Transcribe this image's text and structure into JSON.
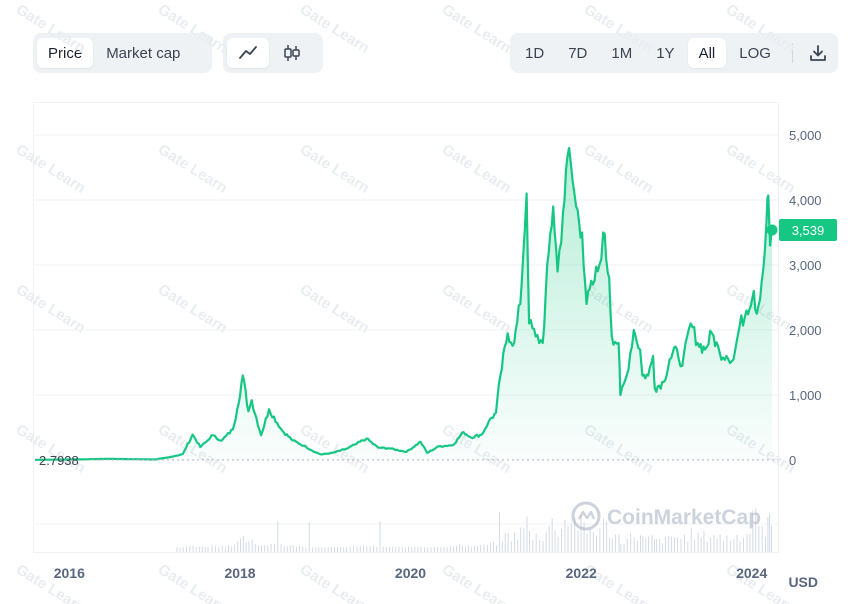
{
  "toolbar": {
    "mode_tabs": [
      {
        "label": "Price",
        "active": true
      },
      {
        "label": "Market cap",
        "active": false
      }
    ],
    "chart_type_icons": [
      "line-chart-icon",
      "candlestick-icon"
    ],
    "ranges": [
      {
        "label": "1D",
        "active": false
      },
      {
        "label": "7D",
        "active": false
      },
      {
        "label": "1M",
        "active": false
      },
      {
        "label": "1Y",
        "active": false
      },
      {
        "label": "All",
        "active": true
      }
    ],
    "log_label": "LOG",
    "download_icon": "download-icon"
  },
  "watermark": {
    "brand": "CoinMarketCap",
    "repeat_text": "Gate Learn"
  },
  "colors": {
    "line": "#16c784",
    "fill_top": "#16c784",
    "badge_bg": "#16c784",
    "axis_text": "#58667e",
    "grid": "#eff2f5",
    "volume": "#cfd6e4"
  },
  "currency_label": "USD",
  "chart_data": {
    "type": "area",
    "title": "",
    "xlabel": "",
    "ylabel": "",
    "x_ticks": [
      "2016",
      "2018",
      "2020",
      "2022",
      "2024"
    ],
    "y_ticks": [
      "5,000",
      "4,000",
      "3,000",
      "2,000",
      "1,000",
      "0"
    ],
    "ylim": [
      0,
      5000
    ],
    "start_price_label": "2.7938",
    "current_price_label": "3,539",
    "series": [
      {
        "values": [
          [
            "2015-08-07",
            2.79
          ],
          [
            "2016-03-01",
            10
          ],
          [
            "2016-06-15",
            18
          ],
          [
            "2017-01-01",
            8
          ],
          [
            "2017-03-01",
            40
          ],
          [
            "2017-05-01",
            90
          ],
          [
            "2017-06-12",
            390
          ],
          [
            "2017-07-15",
            200
          ],
          [
            "2017-08-15",
            300
          ],
          [
            "2017-09-01",
            380
          ],
          [
            "2017-10-15",
            300
          ],
          [
            "2017-12-01",
            470
          ],
          [
            "2017-12-20",
            780
          ],
          [
            "2018-01-13",
            1300
          ],
          [
            "2018-02-06",
            750
          ],
          [
            "2018-02-20",
            920
          ],
          [
            "2018-04-01",
            380
          ],
          [
            "2018-05-05",
            780
          ],
          [
            "2018-07-01",
            450
          ],
          [
            "2018-08-15",
            300
          ],
          [
            "2018-10-01",
            220
          ],
          [
            "2018-11-20",
            120
          ],
          [
            "2018-12-15",
            85
          ],
          [
            "2019-02-01",
            110
          ],
          [
            "2019-04-01",
            170
          ],
          [
            "2019-05-15",
            250
          ],
          [
            "2019-06-26",
            330
          ],
          [
            "2019-08-15",
            190
          ],
          [
            "2019-10-01",
            180
          ],
          [
            "2019-12-15",
            125
          ],
          [
            "2020-02-13",
            280
          ],
          [
            "2020-03-13",
            110
          ],
          [
            "2020-05-01",
            210
          ],
          [
            "2020-07-01",
            230
          ],
          [
            "2020-08-15",
            430
          ],
          [
            "2020-09-15",
            350
          ],
          [
            "2020-11-01",
            390
          ],
          [
            "2020-12-01",
            590
          ],
          [
            "2021-01-01",
            730
          ],
          [
            "2021-01-20",
            1300
          ],
          [
            "2021-02-20",
            1950
          ],
          [
            "2021-03-20",
            1800
          ],
          [
            "2021-04-15",
            2400
          ],
          [
            "2021-05-12",
            4100
          ],
          [
            "2021-05-23",
            2100
          ],
          [
            "2021-06-20",
            1900
          ],
          [
            "2021-07-20",
            1800
          ],
          [
            "2021-08-15",
            3200
          ],
          [
            "2021-09-03",
            3900
          ],
          [
            "2021-09-22",
            2900
          ],
          [
            "2021-10-15",
            3800
          ],
          [
            "2021-11-10",
            4800
          ],
          [
            "2021-11-25",
            4300
          ],
          [
            "2021-12-10",
            3900
          ],
          [
            "2022-01-05",
            3500
          ],
          [
            "2022-01-24",
            2400
          ],
          [
            "2022-02-20",
            2700
          ],
          [
            "2022-03-20",
            3000
          ],
          [
            "2022-04-05",
            3500
          ],
          [
            "2022-05-01",
            2800
          ],
          [
            "2022-05-12",
            1900
          ],
          [
            "2022-06-10",
            1800
          ],
          [
            "2022-06-18",
            1000
          ],
          [
            "2022-07-15",
            1300
          ],
          [
            "2022-08-14",
            2000
          ],
          [
            "2022-09-10",
            1700
          ],
          [
            "2022-09-20",
            1300
          ],
          [
            "2022-10-15",
            1300
          ],
          [
            "2022-11-05",
            1600
          ],
          [
            "2022-11-12",
            1100
          ],
          [
            "2022-12-20",
            1200
          ],
          [
            "2023-01-15",
            1550
          ],
          [
            "2023-02-15",
            1700
          ],
          [
            "2023-03-10",
            1450
          ],
          [
            "2023-04-15",
            2100
          ],
          [
            "2023-05-15",
            1800
          ],
          [
            "2023-06-15",
            1700
          ],
          [
            "2023-07-15",
            1950
          ],
          [
            "2023-08-17",
            1650
          ],
          [
            "2023-09-15",
            1600
          ],
          [
            "2023-10-15",
            1550
          ],
          [
            "2023-11-10",
            2050
          ],
          [
            "2023-12-10",
            2300
          ],
          [
            "2024-01-10",
            2600
          ],
          [
            "2024-01-23",
            2250
          ],
          [
            "2024-02-20",
            2950
          ],
          [
            "2024-03-05",
            3700
          ],
          [
            "2024-03-12",
            4070
          ],
          [
            "2024-03-20",
            3300
          ],
          [
            "2024-03-28",
            3539
          ]
        ]
      }
    ]
  }
}
